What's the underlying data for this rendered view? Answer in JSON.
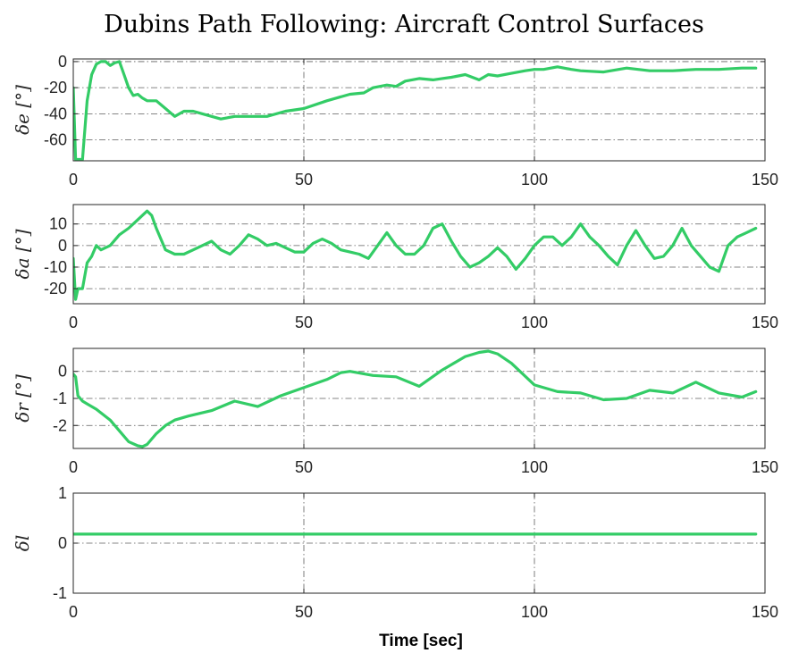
{
  "title": "Dubins Path Following: Aircraft Control Surfaces",
  "line_color": "#33cc66",
  "chart_data": [
    {
      "type": "line",
      "ylabel": "δe [°]",
      "xlim": [
        0,
        150
      ],
      "ylim": [
        -76,
        2
      ],
      "xticks": [
        0,
        50,
        100,
        150
      ],
      "yticks": [
        -60,
        -40,
        -20,
        0
      ],
      "grid": true,
      "xlabel": "",
      "series": [
        {
          "x": [
            0,
            0.5,
            1,
            2,
            3,
            4,
            5,
            6,
            7,
            8,
            9,
            10,
            11,
            12,
            13,
            14,
            15,
            16,
            18,
            20,
            22,
            24,
            26,
            28,
            30,
            32,
            35,
            38,
            42,
            46,
            50,
            55,
            60,
            63,
            65,
            68,
            70,
            72,
            75,
            78,
            80,
            82,
            85,
            88,
            90,
            92,
            95,
            98,
            100,
            102,
            105,
            108,
            110,
            115,
            120,
            125,
            130,
            135,
            140,
            145,
            148
          ],
          "y": [
            -20,
            -75,
            -75,
            -75,
            -30,
            -10,
            -2,
            0,
            0,
            -3,
            -1,
            0,
            -10,
            -20,
            -26,
            -25,
            -28,
            -30,
            -30,
            -36,
            -42,
            -38,
            -38,
            -40,
            -42,
            -44,
            -42,
            -42,
            -42,
            -38,
            -36,
            -30,
            -25,
            -24,
            -20,
            -18,
            -19,
            -15,
            -13,
            -14,
            -13,
            -12,
            -10,
            -14,
            -10,
            -11,
            -9,
            -7,
            -6,
            -6,
            -4,
            -6,
            -7,
            -8,
            -5,
            -7,
            -7,
            -6,
            -6,
            -5,
            -5
          ]
        }
      ]
    },
    {
      "type": "line",
      "ylabel": "δa [°]",
      "xlim": [
        0,
        150
      ],
      "ylim": [
        -27,
        19
      ],
      "xticks": [
        0,
        50,
        100,
        150
      ],
      "yticks": [
        -20,
        -10,
        0,
        10
      ],
      "grid": true,
      "xlabel": "",
      "series": [
        {
          "x": [
            0,
            0.5,
            1,
            2,
            3,
            4,
            5,
            6,
            8,
            10,
            12,
            14,
            16,
            17,
            18,
            20,
            22,
            24,
            26,
            28,
            30,
            32,
            34,
            36,
            38,
            40,
            42,
            44,
            46,
            48,
            50,
            52,
            54,
            56,
            58,
            60,
            62,
            64,
            66,
            68,
            70,
            72,
            74,
            76,
            78,
            80,
            82,
            84,
            86,
            88,
            90,
            92,
            94,
            96,
            98,
            100,
            102,
            104,
            106,
            108,
            110,
            112,
            114,
            116,
            118,
            120,
            122,
            124,
            126,
            128,
            130,
            132,
            134,
            136,
            138,
            140,
            142,
            144,
            146,
            148
          ],
          "y": [
            -6,
            -25,
            -20,
            -20,
            -8,
            -5,
            0,
            -2,
            0,
            5,
            8,
            12,
            16,
            14,
            8,
            -2,
            -4,
            -4,
            -2,
            0,
            2,
            -2,
            -4,
            0,
            5,
            3,
            0,
            1,
            -1,
            -3,
            -3,
            1,
            3,
            1,
            -2,
            -3,
            -4,
            -6,
            0,
            6,
            0,
            -4,
            -4,
            0,
            8,
            10,
            2,
            -5,
            -10,
            -8,
            -5,
            -1,
            -5,
            -11,
            -6,
            0,
            4,
            4,
            0,
            4,
            10,
            4,
            0,
            -5,
            -9,
            0,
            7,
            0,
            -6,
            -5,
            0,
            8,
            0,
            -5,
            -10,
            -12,
            0,
            4,
            6,
            8
          ]
        }
      ]
    },
    {
      "type": "line",
      "ylabel": "δr [°]",
      "xlim": [
        0,
        150
      ],
      "ylim": [
        -2.85,
        0.85
      ],
      "xticks": [
        0,
        50,
        100,
        150
      ],
      "yticks": [
        -2,
        -1,
        0
      ],
      "grid": true,
      "xlabel": "",
      "series": [
        {
          "x": [
            0,
            0.5,
            1,
            2,
            3,
            5,
            8,
            10,
            12,
            14,
            15,
            16,
            18,
            20,
            22,
            25,
            30,
            35,
            40,
            45,
            50,
            55,
            58,
            60,
            65,
            70,
            75,
            80,
            85,
            88,
            90,
            92,
            95,
            100,
            105,
            110,
            115,
            120,
            125,
            130,
            135,
            140,
            145,
            148
          ],
          "y": [
            -0.1,
            -0.2,
            -0.9,
            -1.1,
            -1.2,
            -1.4,
            -1.8,
            -2.2,
            -2.6,
            -2.75,
            -2.78,
            -2.7,
            -2.3,
            -2.0,
            -1.8,
            -1.65,
            -1.45,
            -1.1,
            -1.3,
            -0.9,
            -0.6,
            -0.3,
            -0.05,
            0.0,
            -0.15,
            -0.2,
            -0.55,
            0.05,
            0.55,
            0.7,
            0.75,
            0.65,
            0.3,
            -0.5,
            -0.75,
            -0.8,
            -1.05,
            -1.0,
            -0.7,
            -0.8,
            -0.4,
            -0.8,
            -0.95,
            -0.75
          ]
        }
      ]
    },
    {
      "type": "line",
      "ylabel": "δl",
      "xlim": [
        0,
        150
      ],
      "ylim": [
        -1,
        1
      ],
      "xticks": [
        0,
        50,
        100,
        150
      ],
      "yticks": [
        -1,
        0,
        1
      ],
      "grid": true,
      "xlabel": "Time [sec]",
      "series": [
        {
          "x": [
            0,
            148
          ],
          "y": [
            0.18,
            0.18
          ]
        }
      ]
    }
  ]
}
